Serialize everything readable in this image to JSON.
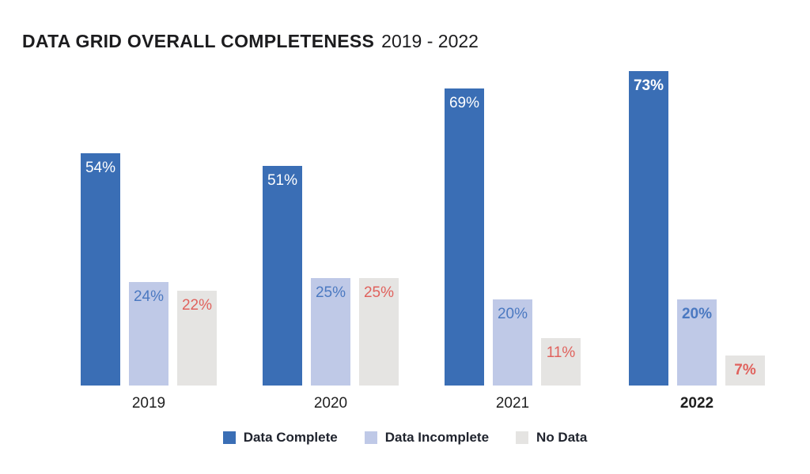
{
  "title": {
    "main": "DATA GRID OVERALL COMPLETENESS",
    "range": "2019 - 2022"
  },
  "chart_data": {
    "type": "bar",
    "title": "DATA GRID OVERALL COMPLETENESS 2019 - 2022",
    "categories": [
      "2019",
      "2020",
      "2021",
      "2022"
    ],
    "series": [
      {
        "name": "Data Complete",
        "color": "#3A6EB5",
        "label_color": "#FFFFFF",
        "values": [
          54,
          51,
          69,
          73
        ]
      },
      {
        "name": "Data Incomplete",
        "color": "#BFC9E7",
        "label_color": "#4B79C1",
        "values": [
          24,
          25,
          20,
          20
        ]
      },
      {
        "name": "No Data",
        "color": "#E5E4E2",
        "label_color": "#E0625D",
        "values": [
          22,
          25,
          11,
          7
        ]
      }
    ],
    "value_suffix": "%",
    "ylim": [
      0,
      100
    ],
    "grid": false,
    "axis_lines": false,
    "legend_position": "bottom",
    "highlight_category": "2022"
  }
}
